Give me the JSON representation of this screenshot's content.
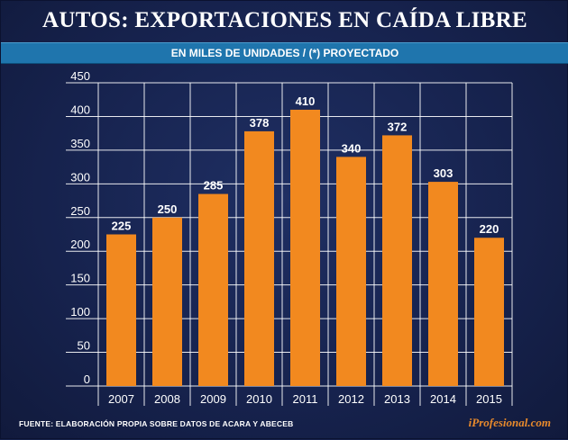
{
  "header": {
    "title": "AUTOS: EXPORTACIONES EN CAÍDA LIBRE",
    "subtitle": "EN MILES DE UNIDADES / (*) PROYECTADO"
  },
  "footer": {
    "source": "FUENTE: ELABORACIÓN PROPIA SOBRE DATOS DE ACARA Y ABECEB",
    "brand": "iProfesional.com"
  },
  "colors": {
    "background": "#16224d",
    "bar": "#f2891f",
    "subtitle_bar": "#1f75ad",
    "grid": "#ffffff",
    "brand": "#e88a2c"
  },
  "chart_data": {
    "type": "bar",
    "categories": [
      "2007",
      "2008",
      "2009",
      "2010",
      "2011",
      "2012",
      "2013",
      "2014",
      "2015"
    ],
    "values": [
      225,
      250,
      285,
      378,
      410,
      340,
      372,
      303,
      220
    ],
    "data_labels": [
      "225",
      "250",
      "285",
      "378",
      "410",
      "340",
      "372",
      "303",
      "220"
    ],
    "yticks": [
      0,
      50,
      100,
      150,
      200,
      250,
      300,
      350,
      400,
      450
    ],
    "ylim": [
      0,
      450
    ],
    "grid": true
  }
}
